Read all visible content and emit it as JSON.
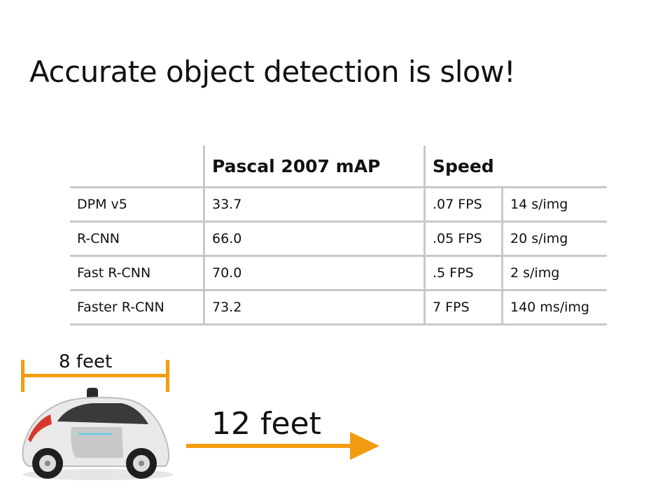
{
  "slide": {
    "title": "Accurate object detection is slow!"
  },
  "table": {
    "header": {
      "col2": "Pascal 2007 mAP",
      "col3": "Speed"
    },
    "rows": [
      {
        "method": "DPM v5",
        "map": "33.7",
        "fps": ".07 FPS",
        "time": "14 s/img"
      },
      {
        "method": "R-CNN",
        "map": "66.0",
        "fps": ".05 FPS",
        "time": "20 s/img"
      },
      {
        "method": "Fast R-CNN",
        "map": "70.0",
        "fps": ".5 FPS",
        "time": "2 s/img"
      },
      {
        "method": "Faster R-CNN",
        "map": "73.2",
        "fps": "7 FPS",
        "time": "140 ms/img"
      }
    ]
  },
  "illustration": {
    "car_width_label": "8 feet",
    "distance_label": "12 feet",
    "accent_color": "#f39c12",
    "car_icon": "self-driving-car-icon"
  }
}
